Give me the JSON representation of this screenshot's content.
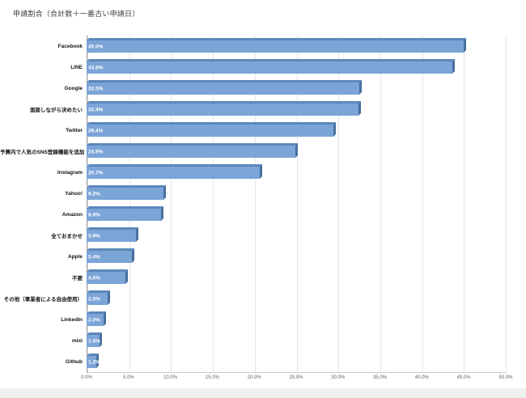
{
  "title": "申請割合（合計数＋一番古い申請日）",
  "chart_data": {
    "type": "bar",
    "orientation": "horizontal",
    "title": "申請割合（合計数＋一番古い申請日）",
    "categories": [
      "Facebook",
      "LINE",
      "Google",
      "面談しながら決めたい",
      "Twitter",
      "予算内で人気のSNS登録機能を追加",
      "Instagram",
      "Yahoo!",
      "Amazon",
      "全ておまかせ",
      "Apple",
      "不要",
      "その他（事業者による自由使用）",
      "LinkedIn",
      "mixi",
      "Github"
    ],
    "values": [
      45.0,
      43.6,
      32.5,
      32.4,
      29.4,
      24.9,
      20.7,
      9.2,
      8.9,
      5.9,
      5.4,
      4.6,
      2.5,
      2.0,
      1.5,
      1.2
    ],
    "value_labels": [
      "45.0%",
      "43.6%",
      "32.5%",
      "32.4%",
      "29.4%",
      "24.9%",
      "20.7%",
      "9.2%",
      "8.9%",
      "5.9%",
      "5.4%",
      "4.6%",
      "2.5%",
      "2.0%",
      "1.5%",
      "1.2%"
    ],
    "x_ticks": [
      "0.0%",
      "5.0%",
      "10.0%",
      "15.0%",
      "20.0%",
      "25.0%",
      "30.0%",
      "35.0%",
      "40.0%",
      "45.0%",
      "50.0%"
    ],
    "xlim": [
      0,
      50
    ],
    "grid": true,
    "legend": "none",
    "bar_color": "#7ba4d7",
    "bar_top_color": "#5c88bb",
    "bar_side_color": "#46709e",
    "value_label_color": "#ffffff"
  }
}
